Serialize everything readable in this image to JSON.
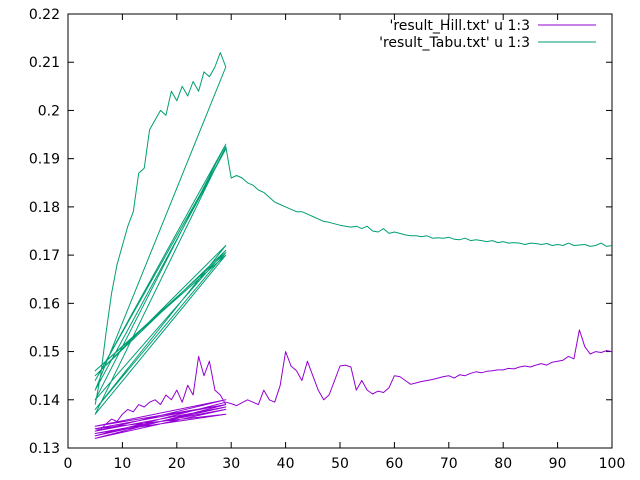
{
  "chart_data": {
    "type": "line",
    "xlim": [
      0,
      100
    ],
    "ylim": [
      0.13,
      0.22
    ],
    "xticks": [
      0,
      10,
      20,
      30,
      40,
      50,
      60,
      70,
      80,
      90,
      100
    ],
    "yticks": [
      0.13,
      0.14,
      0.15,
      0.16,
      0.17,
      0.18,
      0.19,
      0.2,
      0.21,
      0.22
    ],
    "ytick_labels": [
      "0.13",
      "0.14",
      "0.15",
      "0.16",
      "0.17",
      "0.18",
      "0.19",
      "0.2",
      "0.21",
      "0.22"
    ],
    "grid": false,
    "legend_position": "top-right",
    "series": [
      {
        "name": "'result_Hill.txt' u 1:3",
        "color": "#9400d3",
        "values": [
          [
            5,
            0.134
          ],
          [
            6,
            0.1338
          ],
          [
            7,
            0.135
          ],
          [
            8,
            0.136
          ],
          [
            9,
            0.1355
          ],
          [
            10,
            0.137
          ],
          [
            11,
            0.138
          ],
          [
            12,
            0.1375
          ],
          [
            13,
            0.139
          ],
          [
            14,
            0.1385
          ],
          [
            15,
            0.1395
          ],
          [
            16,
            0.14
          ],
          [
            17,
            0.139
          ],
          [
            18,
            0.141
          ],
          [
            19,
            0.14
          ],
          [
            20,
            0.142
          ],
          [
            21,
            0.1395
          ],
          [
            22,
            0.143
          ],
          [
            23,
            0.141
          ],
          [
            24,
            0.149
          ],
          [
            25,
            0.145
          ],
          [
            26,
            0.148
          ],
          [
            27,
            0.142
          ],
          [
            28,
            0.141
          ],
          [
            29,
            0.139
          ],
          [
            5,
            0.134
          ],
          [
            29,
            0.137
          ],
          [
            5,
            0.133
          ],
          [
            29,
            0.138
          ],
          [
            5,
            0.132
          ],
          [
            29,
            0.139
          ],
          [
            5,
            0.1345
          ],
          [
            29,
            0.14
          ],
          [
            5,
            0.1335
          ],
          [
            29,
            0.1385
          ],
          [
            5,
            0.1325
          ],
          [
            29,
            0.1395
          ],
          [
            30,
            0.1392
          ],
          [
            31,
            0.1388
          ],
          [
            32,
            0.1394
          ],
          [
            33,
            0.14
          ],
          [
            34,
            0.1395
          ],
          [
            35,
            0.139
          ],
          [
            36,
            0.142
          ],
          [
            37,
            0.14
          ],
          [
            38,
            0.1395
          ],
          [
            39,
            0.143
          ],
          [
            40,
            0.15
          ],
          [
            41,
            0.147
          ],
          [
            42,
            0.146
          ],
          [
            43,
            0.144
          ],
          [
            44,
            0.148
          ],
          [
            45,
            0.145
          ],
          [
            46,
            0.142
          ],
          [
            47,
            0.14
          ],
          [
            48,
            0.141
          ],
          [
            49,
            0.144
          ],
          [
            50,
            0.147
          ],
          [
            51,
            0.1472
          ],
          [
            52,
            0.1468
          ],
          [
            53,
            0.142
          ],
          [
            54,
            0.144
          ],
          [
            55,
            0.142
          ],
          [
            56,
            0.1412
          ],
          [
            57,
            0.1418
          ],
          [
            58,
            0.1415
          ],
          [
            59,
            0.1425
          ],
          [
            60,
            0.145
          ],
          [
            61,
            0.1448
          ],
          [
            62,
            0.144
          ],
          [
            63,
            0.1432
          ],
          [
            64,
            0.1435
          ],
          [
            65,
            0.1438
          ],
          [
            66,
            0.144
          ],
          [
            67,
            0.1442
          ],
          [
            68,
            0.1445
          ],
          [
            69,
            0.1448
          ],
          [
            70,
            0.145
          ],
          [
            71,
            0.1445
          ],
          [
            72,
            0.1452
          ],
          [
            73,
            0.145
          ],
          [
            74,
            0.1455
          ],
          [
            75,
            0.1458
          ],
          [
            76,
            0.1456
          ],
          [
            77,
            0.1459
          ],
          [
            78,
            0.146
          ],
          [
            79,
            0.1462
          ],
          [
            80,
            0.1462
          ],
          [
            81,
            0.1465
          ],
          [
            82,
            0.1464
          ],
          [
            83,
            0.1468
          ],
          [
            84,
            0.147
          ],
          [
            85,
            0.1468
          ],
          [
            86,
            0.1472
          ],
          [
            87,
            0.1475
          ],
          [
            88,
            0.1472
          ],
          [
            89,
            0.1478
          ],
          [
            90,
            0.148
          ],
          [
            91,
            0.1482
          ],
          [
            92,
            0.149
          ],
          [
            93,
            0.1485
          ],
          [
            94,
            0.1545
          ],
          [
            95,
            0.151
          ],
          [
            96,
            0.1495
          ],
          [
            97,
            0.15
          ],
          [
            98,
            0.1498
          ],
          [
            99,
            0.1502
          ],
          [
            100,
            0.15
          ]
        ]
      },
      {
        "name": "'result_Tabu.txt' u 1:3",
        "color": "#009e73",
        "values": [
          [
            5,
            0.139
          ],
          [
            6,
            0.145
          ],
          [
            7,
            0.154
          ],
          [
            8,
            0.162
          ],
          [
            9,
            0.168
          ],
          [
            10,
            0.172
          ],
          [
            11,
            0.176
          ],
          [
            12,
            0.179
          ],
          [
            13,
            0.187
          ],
          [
            14,
            0.188
          ],
          [
            15,
            0.196
          ],
          [
            16,
            0.198
          ],
          [
            17,
            0.2
          ],
          [
            18,
            0.199
          ],
          [
            19,
            0.204
          ],
          [
            20,
            0.202
          ],
          [
            21,
            0.205
          ],
          [
            22,
            0.203
          ],
          [
            23,
            0.206
          ],
          [
            24,
            0.204
          ],
          [
            25,
            0.208
          ],
          [
            26,
            0.207
          ],
          [
            27,
            0.209
          ],
          [
            28,
            0.212
          ],
          [
            29,
            0.209
          ],
          [
            5,
            0.142
          ],
          [
            29,
            0.192
          ],
          [
            5,
            0.144
          ],
          [
            29,
            0.193
          ],
          [
            5,
            0.14
          ],
          [
            29,
            0.171
          ],
          [
            5,
            0.145
          ],
          [
            29,
            0.172
          ],
          [
            5,
            0.138
          ],
          [
            29,
            0.1705
          ],
          [
            5,
            0.146
          ],
          [
            29,
            0.17
          ],
          [
            5,
            0.137
          ],
          [
            29,
            0.1925
          ],
          [
            30,
            0.186
          ],
          [
            31,
            0.1865
          ],
          [
            32,
            0.186
          ],
          [
            33,
            0.185
          ],
          [
            34,
            0.1845
          ],
          [
            35,
            0.1835
          ],
          [
            36,
            0.183
          ],
          [
            37,
            0.182
          ],
          [
            38,
            0.181
          ],
          [
            39,
            0.1805
          ],
          [
            40,
            0.18
          ],
          [
            41,
            0.1795
          ],
          [
            42,
            0.179
          ],
          [
            43,
            0.179
          ],
          [
            44,
            0.1785
          ],
          [
            45,
            0.178
          ],
          [
            46,
            0.1775
          ],
          [
            47,
            0.177
          ],
          [
            48,
            0.1768
          ],
          [
            49,
            0.1765
          ],
          [
            50,
            0.1762
          ],
          [
            51,
            0.176
          ],
          [
            52,
            0.1758
          ],
          [
            53,
            0.176
          ],
          [
            54,
            0.1755
          ],
          [
            55,
            0.176
          ],
          [
            56,
            0.175
          ],
          [
            57,
            0.1748
          ],
          [
            58,
            0.1755
          ],
          [
            59,
            0.1745
          ],
          [
            60,
            0.1748
          ],
          [
            61,
            0.1745
          ],
          [
            62,
            0.1742
          ],
          [
            63,
            0.174
          ],
          [
            64,
            0.174
          ],
          [
            65,
            0.1738
          ],
          [
            66,
            0.174
          ],
          [
            67,
            0.1735
          ],
          [
            68,
            0.1736
          ],
          [
            69,
            0.1735
          ],
          [
            70,
            0.1737
          ],
          [
            71,
            0.1733
          ],
          [
            72,
            0.1732
          ],
          [
            73,
            0.1735
          ],
          [
            74,
            0.173
          ],
          [
            75,
            0.1732
          ],
          [
            76,
            0.173
          ],
          [
            77,
            0.1728
          ],
          [
            78,
            0.173
          ],
          [
            79,
            0.1726
          ],
          [
            80,
            0.1728
          ],
          [
            81,
            0.1725
          ],
          [
            82,
            0.1726
          ],
          [
            83,
            0.1725
          ],
          [
            84,
            0.1722
          ],
          [
            85,
            0.1725
          ],
          [
            86,
            0.1724
          ],
          [
            87,
            0.1722
          ],
          [
            88,
            0.1724
          ],
          [
            89,
            0.172
          ],
          [
            90,
            0.1722
          ],
          [
            91,
            0.172
          ],
          [
            92,
            0.1725
          ],
          [
            93,
            0.172
          ],
          [
            94,
            0.1721
          ],
          [
            95,
            0.1722
          ],
          [
            96,
            0.1718
          ],
          [
            97,
            0.172
          ],
          [
            98,
            0.1725
          ],
          [
            99,
            0.1718
          ],
          [
            100,
            0.172
          ]
        ]
      }
    ]
  }
}
